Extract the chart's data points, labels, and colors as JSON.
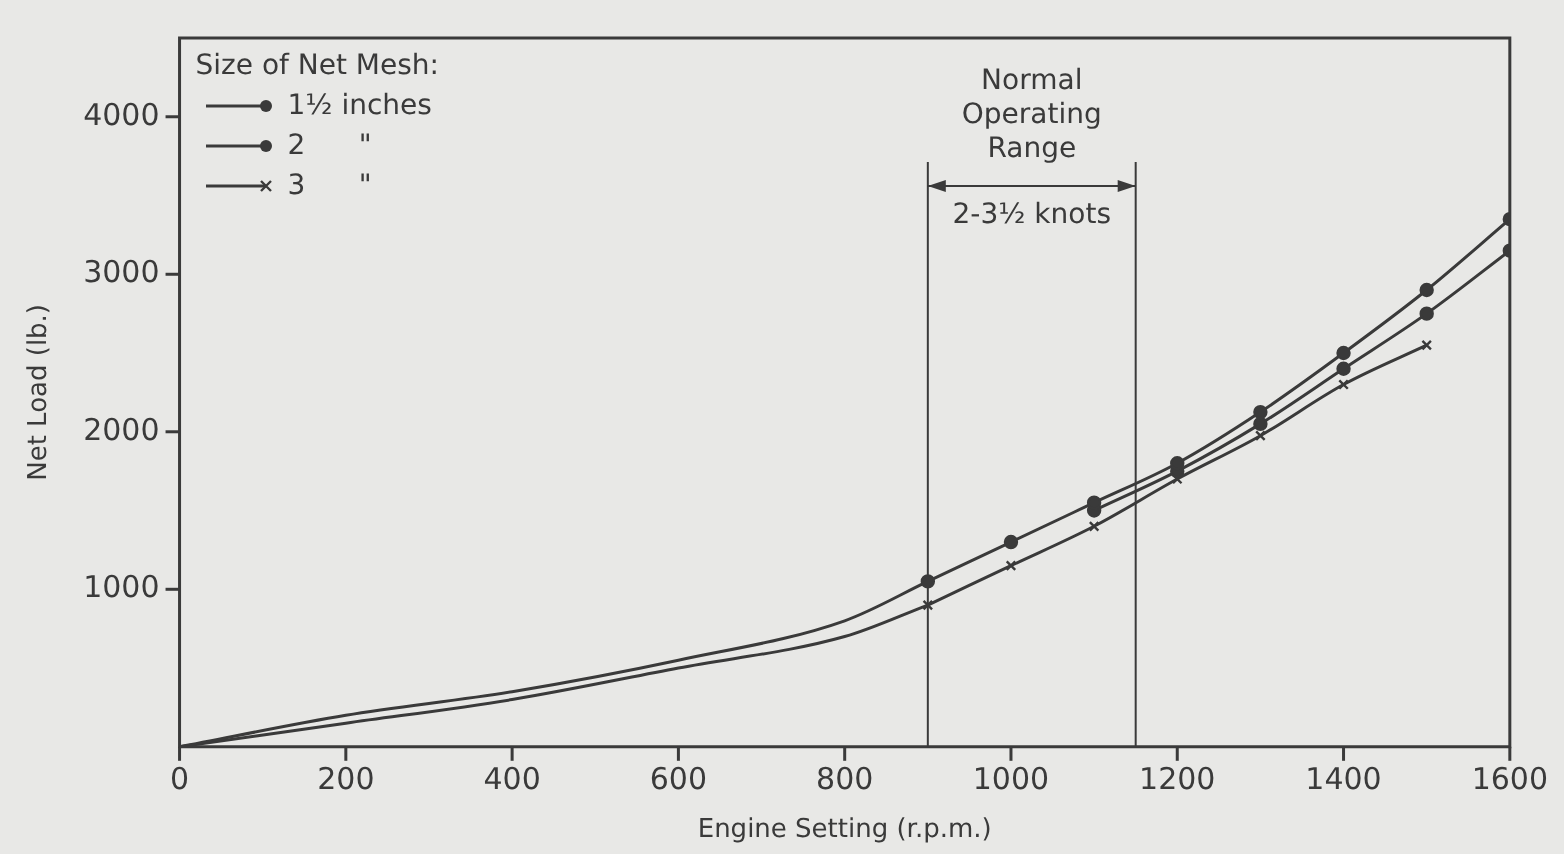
{
  "chart_data": {
    "type": "line",
    "xlabel": "Engine Setting (r.p.m.)",
    "ylabel": "Net Load (lb.)",
    "legend_title": "Size of Net Mesh:",
    "legend": "top left",
    "grid": false,
    "line_style": "solid",
    "xlim": [
      0,
      1600
    ],
    "xticks": [
      0,
      200,
      400,
      600,
      800,
      1000,
      1200,
      1400,
      1600
    ],
    "ylim": [
      0,
      4500
    ],
    "yticks": [
      1000,
      2000,
      3000,
      4000
    ],
    "ref_lines": [
      {
        "axis": "x",
        "value": 900,
        "label": "Normal Operating Range"
      },
      {
        "axis": "x",
        "value": 1150
      }
    ],
    "annotations": [
      "2-3½ knots"
    ],
    "series": [
      {
        "color": "#3a3a3a",
        "marker": "none",
        "x": [
          0,
          200,
          400,
          600,
          800,
          900
        ],
        "values": [
          0,
          200,
          350,
          550,
          800,
          1050
        ]
      },
      {
        "color": "#3a3a3a",
        "marker": "none",
        "x": [
          0,
          200,
          400,
          600,
          800,
          900
        ],
        "values": [
          0,
          150,
          300,
          500,
          700,
          900
        ]
      },
      {
        "name": "1½ inches",
        "color": "#3a3a3a",
        "marker": "circle",
        "x": [
          900,
          1000,
          1100,
          1200,
          1300,
          1400,
          1500,
          1600
        ],
        "values": [
          1050,
          1300,
          1550,
          1800,
          2125,
          2500,
          2900,
          3350
        ]
      },
      {
        "name": "2      \"",
        "color": "#3a3a3a",
        "marker": "circle",
        "x": [
          1100,
          1200,
          1300,
          1400,
          1500,
          1600
        ],
        "values": [
          1500,
          1750,
          2050,
          2400,
          2750,
          3150
        ]
      },
      {
        "name": "3      \"",
        "color": "#3a3a3a",
        "marker": "cross",
        "x": [
          900,
          1000,
          1100,
          1200,
          1300,
          1400,
          1500
        ],
        "values": [
          900,
          1150,
          1400,
          1700,
          1975,
          2300,
          2550
        ]
      }
    ]
  }
}
